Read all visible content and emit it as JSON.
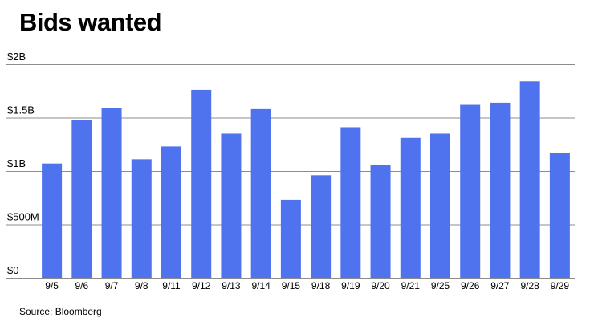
{
  "chart_data": {
    "type": "bar",
    "title": "Bids wanted",
    "source": "Source: Bloomberg",
    "categories": [
      "9/5",
      "9/6",
      "9/7",
      "9/8",
      "9/11",
      "9/12",
      "9/13",
      "9/14",
      "9/15",
      "9/18",
      "9/19",
      "9/20",
      "9/21",
      "9/25",
      "9/26",
      "9/27",
      "9/28",
      "9/29"
    ],
    "values": [
      1.07,
      1.48,
      1.59,
      1.11,
      1.23,
      1.76,
      1.35,
      1.58,
      0.73,
      0.96,
      1.41,
      1.06,
      1.31,
      1.35,
      1.62,
      1.64,
      1.84,
      1.17
    ],
    "unit": "billions USD",
    "ylim": [
      0,
      2
    ],
    "yticks": [
      {
        "value": 0,
        "label": "$0"
      },
      {
        "value": 0.5,
        "label": "$500M"
      },
      {
        "value": 1,
        "label": "$1B"
      },
      {
        "value": 1.5,
        "label": "$1.5B"
      },
      {
        "value": 2,
        "label": "$2B"
      }
    ],
    "xlabel": "",
    "ylabel": "",
    "grid": true,
    "legend": "none",
    "colors": {
      "bar": "#4f72ef",
      "grid": "#8c8c8c",
      "baseline": "#8c8c8c"
    }
  }
}
